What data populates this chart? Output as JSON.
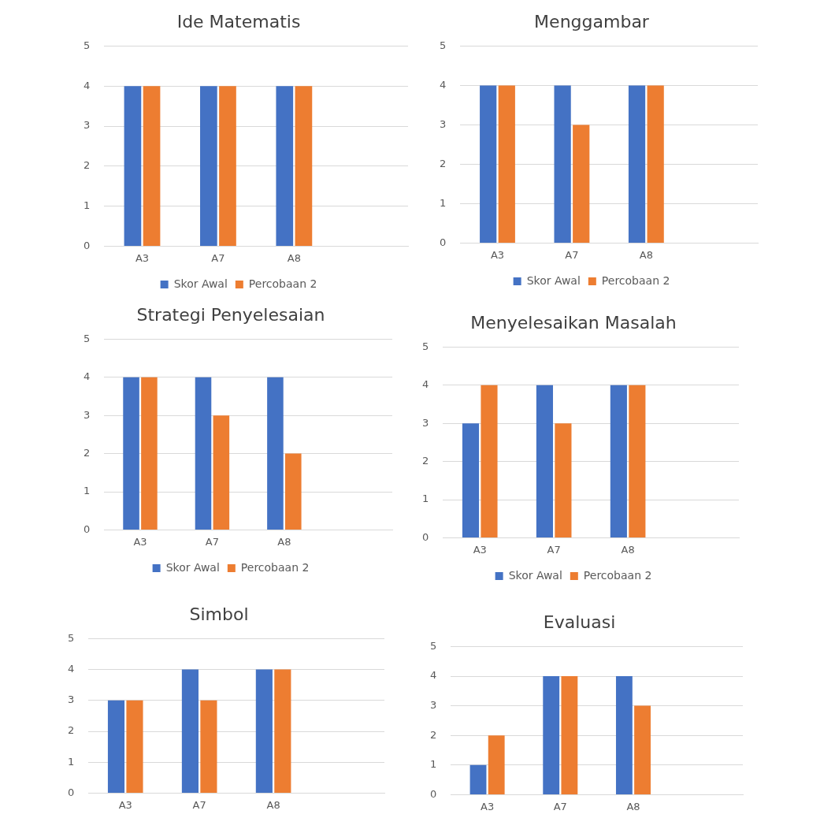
{
  "chart_data": [
    {
      "type": "bar",
      "title": "Ide Matematis",
      "categories": [
        "A3",
        "A7",
        "A8",
        null
      ],
      "series": [
        {
          "name": "Skor Awal",
          "color": "#4472c4",
          "values": [
            4,
            4,
            4,
            null
          ]
        },
        {
          "name": "Percobaan 2",
          "color": "#ed7d31",
          "values": [
            4,
            4,
            4,
            null
          ]
        }
      ],
      "ylim": [
        0,
        5
      ],
      "yticks": [
        0,
        1,
        2,
        3,
        4,
        5
      ],
      "grid": "y",
      "legend": "bottom"
    },
    {
      "type": "bar",
      "title": "Menggambar",
      "categories": [
        "A3",
        "A7",
        "A8",
        null
      ],
      "series": [
        {
          "name": "Skor Awal",
          "color": "#4472c4",
          "values": [
            4,
            4,
            4,
            null
          ]
        },
        {
          "name": "Percobaan 2",
          "color": "#ed7d31",
          "values": [
            4,
            3,
            4,
            null
          ]
        }
      ],
      "ylim": [
        0,
        5
      ],
      "yticks": [
        0,
        1,
        2,
        3,
        4,
        5
      ],
      "grid": "y",
      "legend": "bottom"
    },
    {
      "type": "bar",
      "title": "Strategi Penyelesaian",
      "categories": [
        "A3",
        "A7",
        "A8",
        null
      ],
      "series": [
        {
          "name": "Skor Awal",
          "color": "#4472c4",
          "values": [
            4,
            4,
            4,
            null
          ]
        },
        {
          "name": "Percobaan 2",
          "color": "#ed7d31",
          "values": [
            4,
            3,
            2,
            null
          ]
        }
      ],
      "ylim": [
        0,
        5
      ],
      "yticks": [
        0,
        1,
        2,
        3,
        4,
        5
      ],
      "grid": "y",
      "legend": "bottom"
    },
    {
      "type": "bar",
      "title": "Menyelesaikan Masalah",
      "categories": [
        "A3",
        "A7",
        "A8",
        null
      ],
      "series": [
        {
          "name": "Skor Awal",
          "color": "#4472c4",
          "values": [
            3,
            4,
            4,
            null
          ]
        },
        {
          "name": "Percobaan 2",
          "color": "#ed7d31",
          "values": [
            4,
            3,
            4,
            null
          ]
        }
      ],
      "ylim": [
        0,
        5
      ],
      "yticks": [
        0,
        1,
        2,
        3,
        4,
        5
      ],
      "grid": "y",
      "legend": "bottom"
    },
    {
      "type": "bar",
      "title": "Simbol",
      "categories": [
        "A3",
        "A7",
        "A8",
        null
      ],
      "series": [
        {
          "color": "#4472c4",
          "values": [
            3,
            4,
            4,
            null
          ]
        },
        {
          "color": "#ed7d31",
          "values": [
            3,
            3,
            4,
            null
          ]
        }
      ],
      "ylim": [
        0,
        5
      ],
      "yticks": [
        0,
        1,
        2,
        3,
        4,
        5
      ],
      "grid": "y"
    },
    {
      "type": "bar",
      "title": "Evaluasi",
      "categories": [
        "A3",
        "A7",
        "A8",
        null
      ],
      "series": [
        {
          "color": "#4472c4",
          "values": [
            1,
            4,
            4,
            null
          ]
        },
        {
          "color": "#ed7d31",
          "values": [
            2,
            4,
            3,
            null
          ]
        }
      ],
      "ylim": [
        0,
        5
      ],
      "yticks": [
        0,
        1,
        2,
        3,
        4,
        5
      ],
      "grid": "y"
    }
  ]
}
